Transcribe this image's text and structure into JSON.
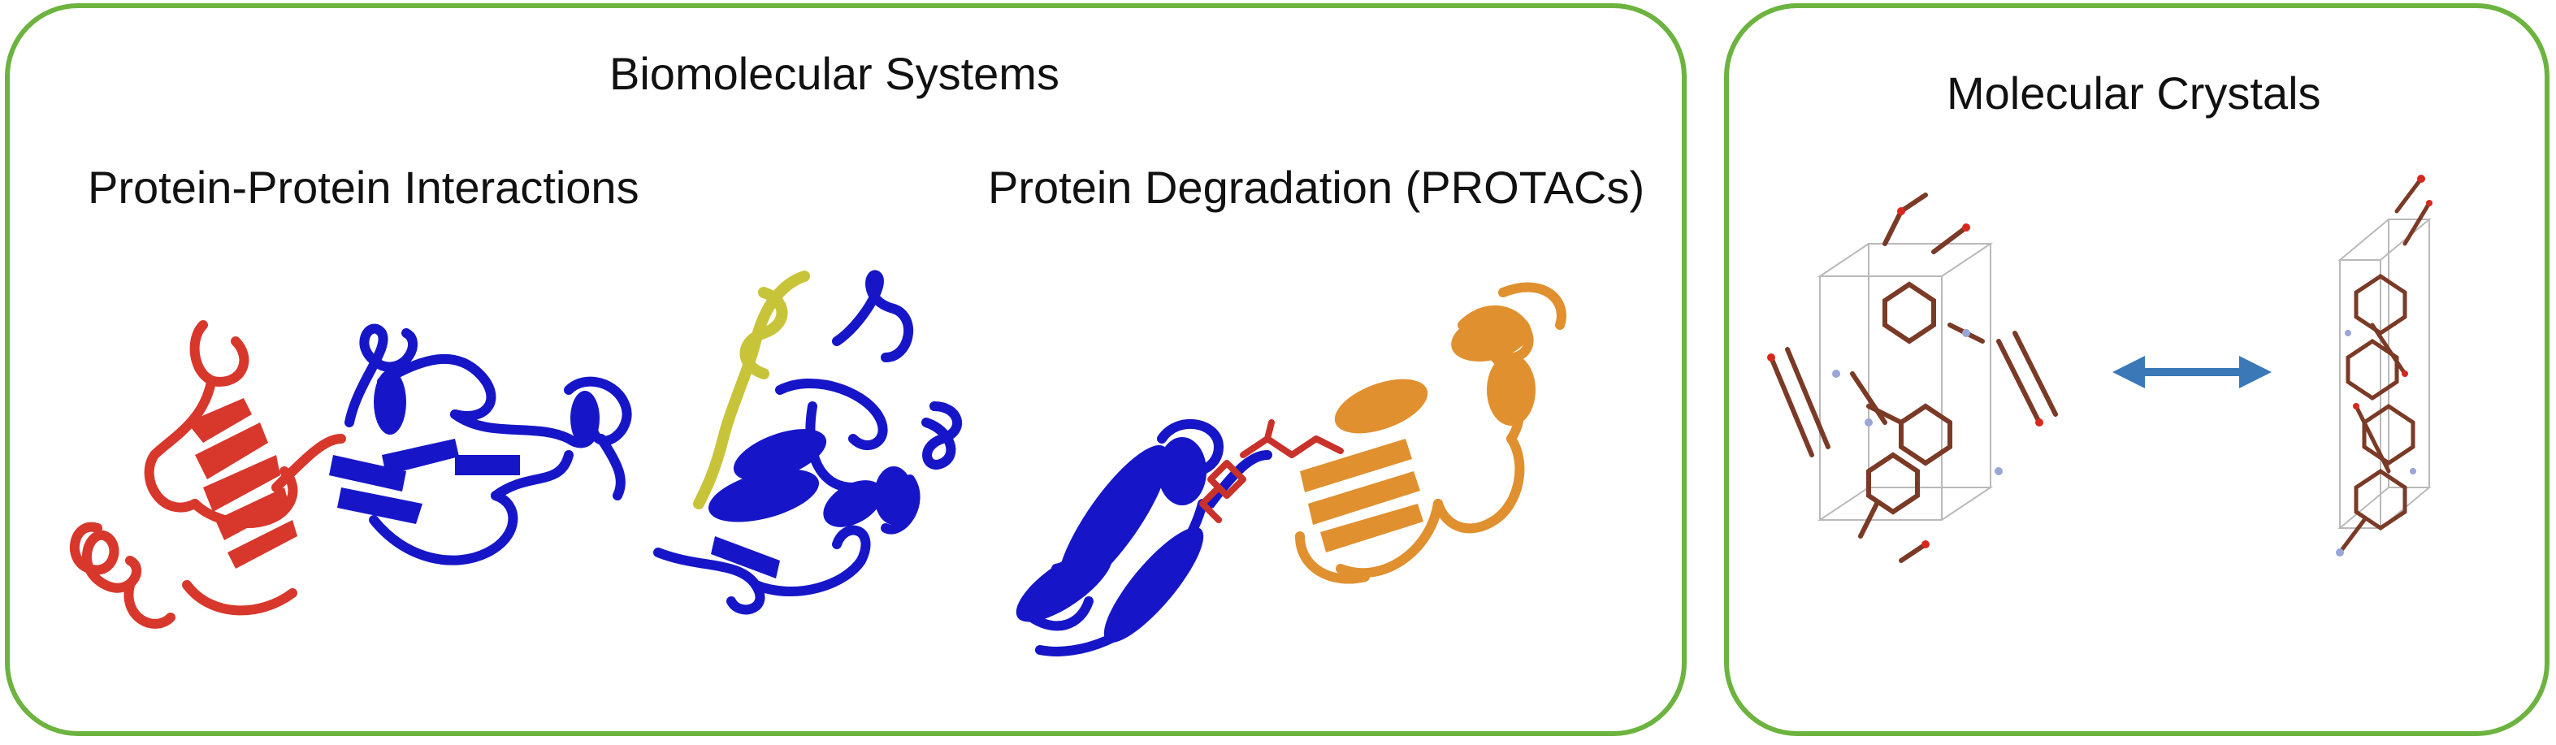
{
  "panels": {
    "biomolecular": {
      "title": "Biomolecular Systems",
      "sections": [
        {
          "label": "Protein-Protein Interactions"
        },
        {
          "label": "Protein Degradation (PROTACs)"
        }
      ]
    },
    "crystals": {
      "title": "Molecular Crystals"
    }
  },
  "colors": {
    "panel_border": "#6cb33f",
    "protein_red": "#d8372c",
    "protein_blue": "#1616c8",
    "protein_yellow": "#c8c43a",
    "protein_orange": "#e0902f",
    "ligand_red": "#c8322a",
    "crystal_bond": "#7a3a26",
    "crystal_oxygen": "#d8281e",
    "crystal_nitrogen": "#9aa6d6",
    "unit_cell": "#b9b9b9",
    "arrow": "#3a78b8"
  },
  "icons": {
    "ppi_left": "protein-ribbon-red-blue",
    "ppi_right": "protein-ribbon-blue-yellow",
    "protac": "protein-ribbon-blue-orange-ligand",
    "crystal_left": "unit-cell-molecules",
    "crystal_arrow": "double-headed-arrow",
    "crystal_right": "unit-cell-molecules-compressed"
  }
}
